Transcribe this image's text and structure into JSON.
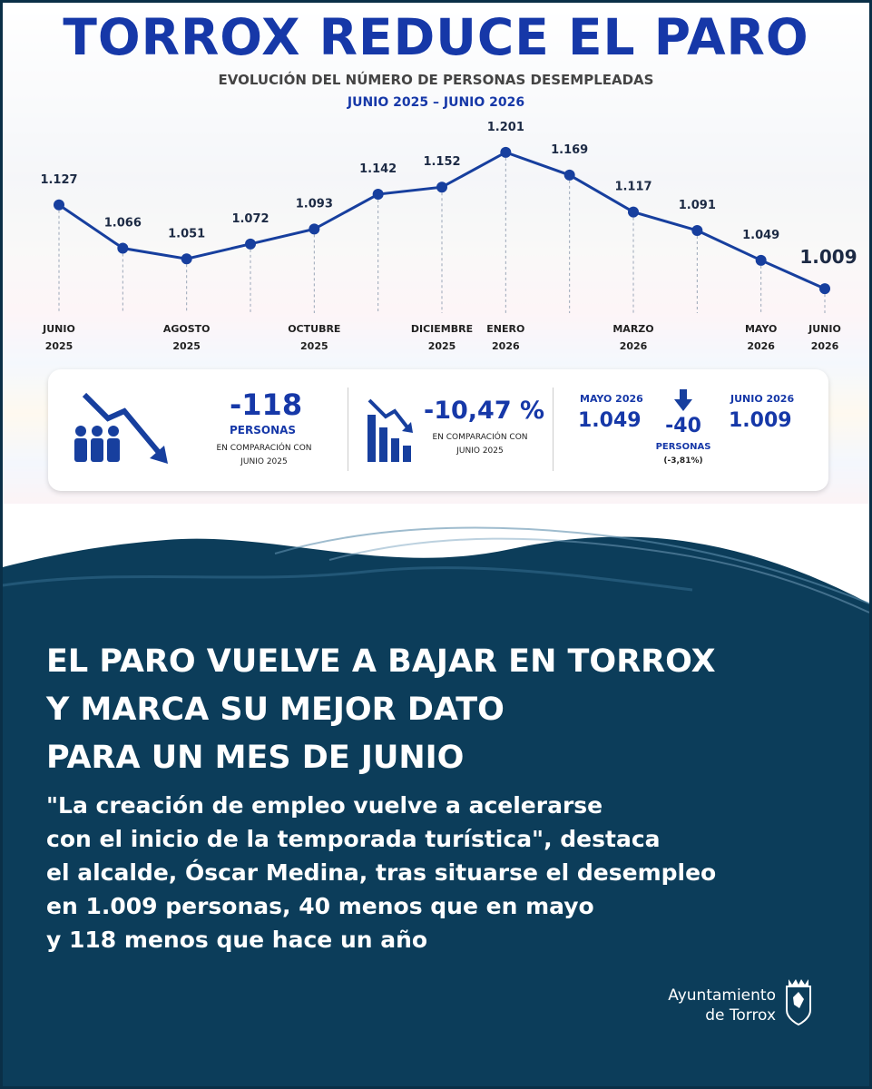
{
  "header": {
    "title": "TORROX REDUCE EL PARO",
    "subtitle": "EVOLUCIÓN DEL NÚMERO DE PERSONAS DESEMPLEADAS",
    "period": "JUNIO 2025 – JUNIO 2026"
  },
  "chart_data": {
    "type": "line",
    "categories": [
      "JUNIO\n2025",
      null,
      "AGOSTO\n2025",
      null,
      "OCTUBRE\n2025",
      null,
      "DICIEMBRE\n2025",
      "ENERO\n2026",
      null,
      "MARZO\n2026",
      null,
      "MAYO\n2026",
      "JUNIO\n2026"
    ],
    "series": [
      {
        "name": "Personas desempleadas",
        "color": "#173f9e",
        "values": [
          1127,
          1066,
          1051,
          1072,
          1093,
          1142,
          1152,
          1201,
          1169,
          1117,
          1091,
          1049,
          1009
        ],
        "value_labels": [
          "1.127",
          "1.066",
          "1.051",
          "1.072",
          "1.093",
          "1.142",
          "1.152",
          "1.201",
          "1.169",
          "1.117",
          "1.091",
          "1.049",
          "1.009"
        ]
      }
    ],
    "ylim": [
      990,
      1220
    ]
  },
  "stats": {
    "annual": {
      "value": "-118",
      "unit": "PERSONAS",
      "note": "EN COMPARACIÓN CON\nJUNIO 2025"
    },
    "percent": {
      "value": "-10,47 %",
      "note": "EN COMPARACIÓN CON\nJUNIO 2025"
    },
    "monthly": {
      "from_label": "MAYO 2026",
      "from_value": "1.049",
      "change": "-40",
      "unit": "PERSONAS",
      "percent": "(-3,81%)",
      "to_label": "JUNIO 2026",
      "to_value": "1.009"
    }
  },
  "headline": [
    "EL PARO VUELVE A BAJAR EN TORROX",
    "Y MARCA SU MEJOR DATO",
    "PARA UN MES DE JUNIO"
  ],
  "quote": [
    "\"La creación de empleo vuelve a acelerarse",
    "con el inicio de la temporada turística\", destaca",
    "el alcalde, Óscar Medina, tras situarse el desempleo",
    "en 1.009 personas, 40 menos que en mayo",
    "y 118 menos que hace un año"
  ],
  "logo": [
    "Ayuntamiento",
    "de Torrox"
  ]
}
